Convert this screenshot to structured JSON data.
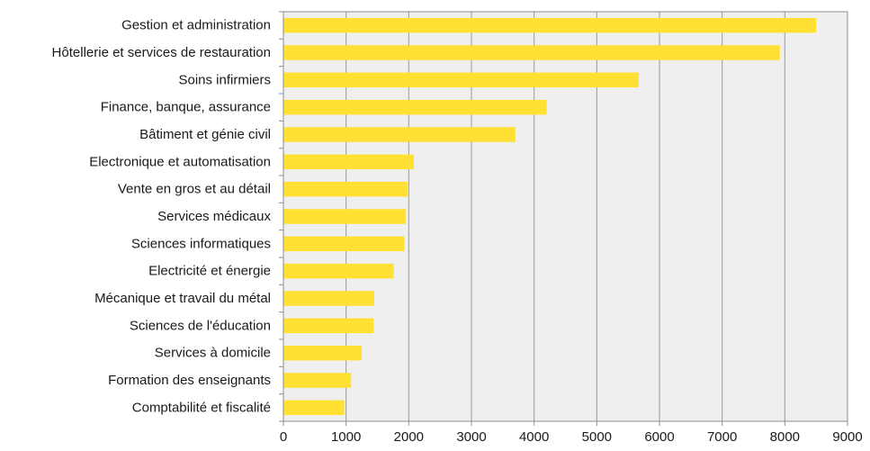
{
  "chart_data": {
    "type": "bar",
    "orientation": "horizontal",
    "categories": [
      "Gestion et administration",
      "Hôtellerie et services de restauration",
      "Soins infirmiers",
      "Finance, banque, assurance",
      "Bâtiment et génie civil",
      "Electronique et automatisation",
      "Vente en gros et au détail",
      "Services médicaux",
      "Sciences informatiques",
      "Electricité et énergie",
      "Mécanique et travail du métal",
      "Sciences de l'éducation",
      "Services à domicile",
      "Formation des enseignants",
      "Comptabilité et fiscalité"
    ],
    "values": [
      8500,
      7920,
      5670,
      4200,
      3700,
      2080,
      1980,
      1950,
      1930,
      1760,
      1450,
      1440,
      1250,
      1080,
      970
    ],
    "xlim": [
      0,
      9000
    ],
    "xticks": [
      0,
      1000,
      2000,
      3000,
      4000,
      5000,
      6000,
      7000,
      8000,
      9000
    ],
    "title": "",
    "xlabel": "",
    "ylabel": "",
    "grid": "vertical",
    "legend": "none",
    "colors": {
      "bar": "#ffe033",
      "plot_background": "#efefef",
      "grid": "#9a9a9a",
      "axis": "#8c8c8c",
      "text": "#1a1a1a"
    }
  }
}
